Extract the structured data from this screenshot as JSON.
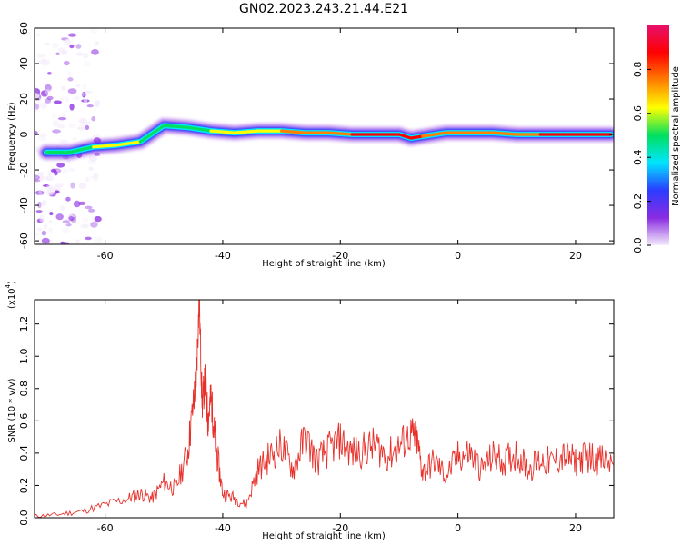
{
  "figure_title": "GN02.2023.243.21.44.E21",
  "colors": {
    "snr_line": "#e8302a",
    "colormap": [
      "#f4ecfb",
      "#8a2be2",
      "#2b3cff",
      "#00e5ff",
      "#00e060",
      "#ffff00",
      "#ff7f00",
      "#ff0000",
      "#e8106a"
    ]
  },
  "chart_data": [
    {
      "id": "spectrogram",
      "type": "heatmap",
      "title": "",
      "xlabel": "Height of straight line (km)",
      "ylabel": "Frequency (Hz)",
      "xlim": [
        -72,
        26.5
      ],
      "ylim": [
        -62,
        60
      ],
      "xticks": [
        -60,
        -40,
        -20,
        0,
        20
      ],
      "yticks": [
        -60,
        -40,
        -20,
        0,
        20,
        40,
        60
      ],
      "ridge": {
        "x": [
          -70,
          -66,
          -62,
          -58,
          -54,
          -50,
          -46,
          -42,
          -38,
          -34,
          -30,
          -26,
          -22,
          -18,
          -14,
          -10,
          -8,
          -6,
          -2,
          0,
          2,
          6,
          10,
          14,
          18,
          22,
          26
        ],
        "y": [
          -10,
          -10,
          -7,
          -6,
          -4,
          5,
          4,
          2,
          1,
          2,
          2,
          1,
          1,
          0,
          0,
          0,
          -2,
          -1,
          1,
          1,
          1,
          1,
          0,
          0,
          0,
          0,
          0
        ],
        "amp": [
          0.45,
          0.5,
          0.55,
          0.65,
          0.55,
          0.55,
          0.5,
          0.6,
          0.6,
          0.55,
          0.65,
          0.75,
          0.65,
          0.8,
          0.9,
          0.85,
          0.95,
          0.7,
          0.75,
          0.8,
          0.8,
          0.75,
          0.7,
          0.85,
          0.9,
          0.9,
          0.9
        ]
      },
      "colorbar": {
        "label": "Normalized spectral amplitude",
        "ticks": [
          "0.0",
          "0.2",
          "0.4",
          "0.6",
          "0.8"
        ],
        "range": [
          0,
          1
        ]
      }
    },
    {
      "id": "snr",
      "type": "line",
      "title": "",
      "xlabel": "Height of straight line (km)",
      "ylabel": "SNR (10 * v/v)",
      "y_multiplier": "(x10",
      "y_multiplier_exp": "4",
      "y_multiplier_close": ")",
      "xlim": [
        -72,
        26.5
      ],
      "ylim": [
        0,
        1.35
      ],
      "xticks": [
        -60,
        -40,
        -20,
        0,
        20
      ],
      "yticks": [
        "0.0",
        "0.2",
        "0.4",
        "0.6",
        "0.8",
        "1.0",
        "1.2"
      ],
      "yticks_values": [
        0,
        0.2,
        0.4,
        0.6,
        0.8,
        1.0,
        1.2
      ],
      "series": [
        {
          "x": [
            -72,
            -68,
            -64,
            -60,
            -56,
            -54,
            -52,
            -50,
            -48,
            -46,
            -45,
            -44.5,
            -44,
            -43.5,
            -43,
            -42.5,
            -42,
            -41.5,
            -41,
            -40,
            -38,
            -36,
            -34,
            -32,
            -30,
            -28,
            -26,
            -24,
            -22,
            -20,
            -18,
            -16,
            -14,
            -12,
            -10,
            -8,
            -7,
            -6,
            -4,
            -2,
            0,
            2,
            4,
            6,
            8,
            10,
            12,
            14,
            16,
            18,
            20,
            22,
            24,
            26.5
          ],
          "y": [
            0.01,
            0.02,
            0.04,
            0.08,
            0.12,
            0.15,
            0.12,
            0.22,
            0.18,
            0.4,
            0.7,
            0.88,
            1.35,
            0.7,
            0.85,
            0.6,
            0.75,
            0.55,
            0.4,
            0.15,
            0.12,
            0.08,
            0.3,
            0.38,
            0.45,
            0.3,
            0.5,
            0.35,
            0.42,
            0.48,
            0.4,
            0.42,
            0.45,
            0.38,
            0.44,
            0.52,
            0.48,
            0.28,
            0.35,
            0.26,
            0.38,
            0.4,
            0.3,
            0.38,
            0.35,
            0.4,
            0.3,
            0.36,
            0.34,
            0.38,
            0.35,
            0.38,
            0.36,
            0.33
          ]
        }
      ]
    }
  ]
}
